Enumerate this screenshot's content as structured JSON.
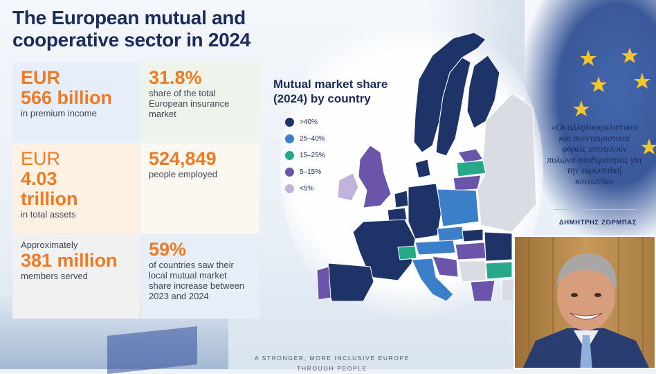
{
  "title_line1": "The European mutual and",
  "title_line2": "cooperative sector in 2024",
  "stats": {
    "premium_line1": "EUR",
    "premium_line2": "566 billion",
    "premium_sub": "in premium income",
    "share_value": "31.8%",
    "share_sub": "share of the total European insurance market",
    "assets_line1": "EUR",
    "assets_line2": "4.03",
    "assets_line3": "trillion",
    "assets_sub": "in total assets",
    "employed_value": "524,849",
    "employed_sub": "people employed",
    "members_pre": "Approximately",
    "members_value": "381 million",
    "members_sub": "members served",
    "increase_value": "59%",
    "increase_sub": "of countries saw their local mutual market share increase between 2023 and 2024"
  },
  "map": {
    "title_line1": "Mutual market share",
    "title_line2": "(2024) by country",
    "legend": [
      {
        "label": ">40%",
        "color": "#1e3468"
      },
      {
        "label": "25–40%",
        "color": "#3b7fc8"
      },
      {
        "label": "15–25%",
        "color": "#27a889"
      },
      {
        "label": "5–15%",
        "color": "#6a55aa"
      },
      {
        "label": "<5%",
        "color": "#c3b3dc"
      }
    ],
    "no_data_color": "#d9dde3"
  },
  "quote": {
    "text": "«Oι αλληλασφαλιστικοί και συνεταιριστικοί φορείς αποτελούν πυλώνα σταθερότητας για την ευρωπαϊκή κοινωνία»",
    "author": "ΔΗΜΗΤΡΗΣ ΖΟΡΜΠΑΣ"
  },
  "tagline_line1": "A STRONGER, MORE INCLUSIVE EUROPE",
  "tagline_line2": "THROUGH PEOPLE",
  "colors": {
    "accent": "#ee7b22",
    "navy": "#1b2b5a"
  }
}
